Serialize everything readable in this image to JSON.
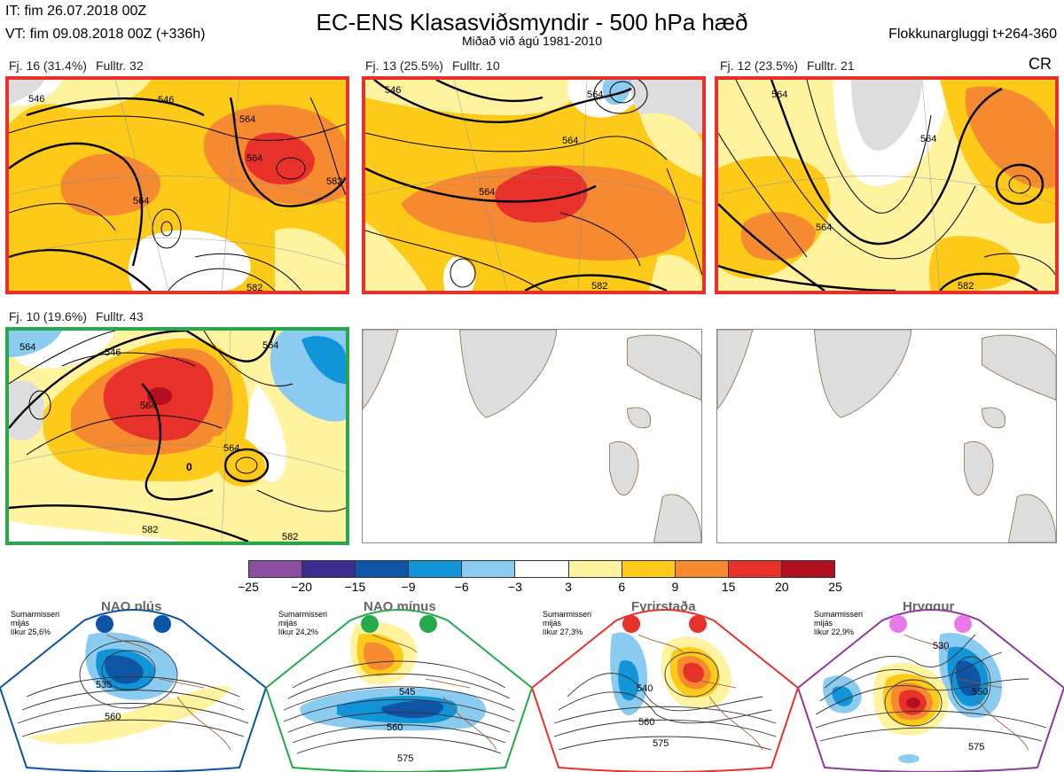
{
  "header": {
    "it": "IT: fim 26.07.2018 00Z",
    "vt": "VT: fim 09.08.2018 00Z  (+336h)",
    "title": "EC-ENS Klasasviðsmyndir - 500 hPa hæð",
    "subtitle": "Miðað við ágú 1981-2010",
    "window": "Flokkunargluggi t+264-360",
    "code": "CR"
  },
  "panels": [
    {
      "label": "Fj. 16 (31.4%)",
      "members": "Fulltr. 32",
      "border": "#e8312a",
      "contours": [
        "546",
        "564",
        "564",
        "564",
        "582",
        "582"
      ]
    },
    {
      "label": "Fj. 13 (25.5%)",
      "members": "Fulltr. 10",
      "border": "#e8312a",
      "contours": [
        "546",
        "564",
        "564",
        "582"
      ]
    },
    {
      "label": "Fj. 12 (23.5%)",
      "members": "Fulltr. 21",
      "border": "#e8312a",
      "contours": [
        "564",
        "564",
        "582"
      ]
    },
    {
      "label": "Fj. 10 (19.6%)",
      "members": "Fulltr. 43",
      "border": "#27a84a",
      "contours": [
        "546",
        "564",
        "564",
        "564",
        "582",
        "582"
      ]
    }
  ],
  "colorbar": {
    "colors": [
      "#8b4ea1",
      "#3d2c8f",
      "#0f55a6",
      "#1295d8",
      "#8ccbf0",
      "#ffffff",
      "#fff3a0",
      "#fdca1a",
      "#f58a30",
      "#e8312a",
      "#b01020"
    ],
    "ticks": [
      "−25",
      "−20",
      "−15",
      "−9",
      "−6",
      "−3",
      "3",
      "6",
      "9",
      "15",
      "20",
      "25"
    ]
  },
  "regimes": [
    {
      "name": "NAO plús",
      "text": "Sumarmisseri\nmijás\nlíkur 25,6%",
      "color": "#0b55a8",
      "contours": [
        "535",
        "560"
      ]
    },
    {
      "name": "NAO mínus",
      "text": "Sumarmisseri\nmijás\nlíkur 24,2%",
      "color": "#27a84a",
      "contours": [
        "545",
        "560",
        "575"
      ]
    },
    {
      "name": "Fyrirstaða",
      "text": "Sumarmisseri\nmijás\nlíkur 27,3%",
      "color": "#e8312a",
      "contours": [
        "540",
        "560",
        "575"
      ]
    },
    {
      "name": "Hryggur",
      "text": "Sumarmisseri\nmijás\nlíkur 22,9%",
      "color": "#8e3a9e",
      "contours": [
        "530",
        "550",
        "575"
      ]
    }
  ]
}
